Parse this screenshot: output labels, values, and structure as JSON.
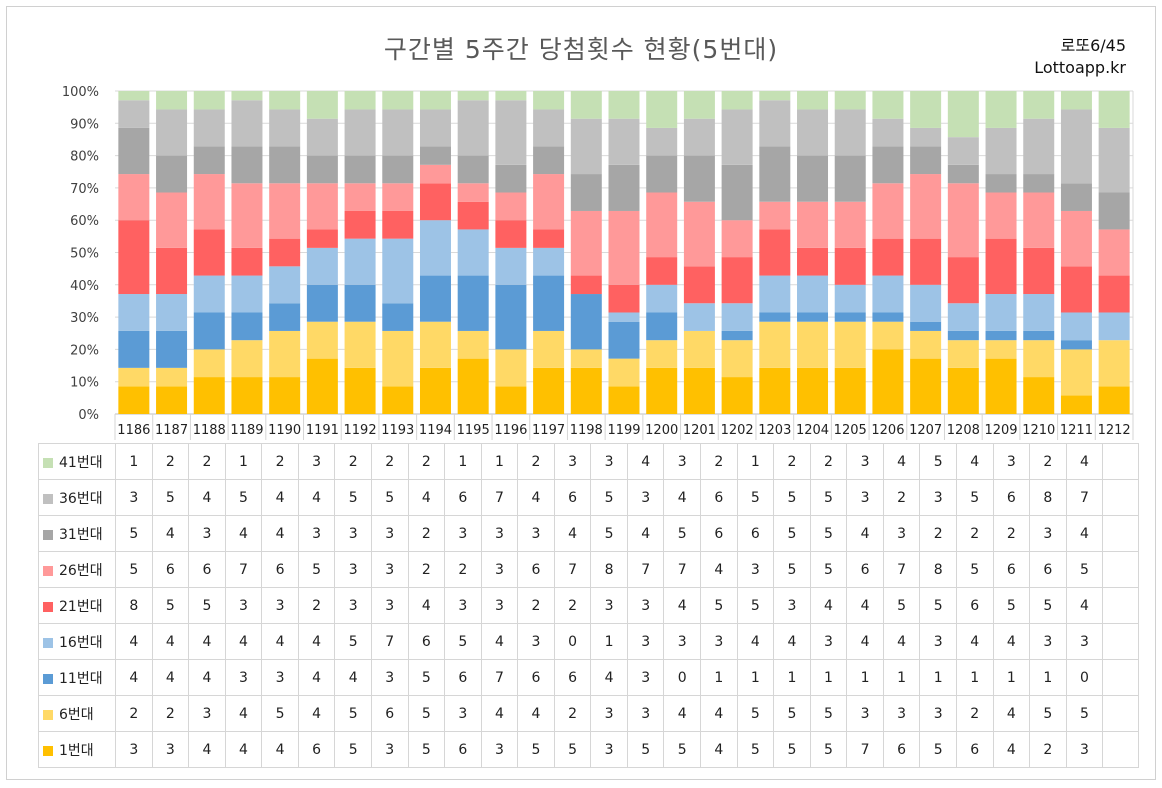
{
  "header": {
    "title": "구간별 5주간 당첨횟수 현황(5번대)",
    "brand_top": "로또6/45",
    "brand_bottom": "Lottoapp.kr"
  },
  "chart_data": {
    "type": "bar",
    "stacked": "percent",
    "title": "구간별 5주간 당첨횟수 현황(5번대)",
    "ylim": [
      0,
      100
    ],
    "y_ticks": [
      "0%",
      "10%",
      "20%",
      "30%",
      "40%",
      "50%",
      "60%",
      "70%",
      "80%",
      "90%",
      "100%"
    ],
    "grid": true,
    "categories": [
      "1186",
      "1187",
      "1188",
      "1189",
      "1190",
      "1191",
      "1192",
      "1193",
      "1194",
      "1195",
      "1196",
      "1197",
      "1198",
      "1199",
      "1200",
      "1201",
      "1202",
      "1203",
      "1204",
      "1205",
      "1206",
      "1207",
      "1208",
      "1209",
      "1210",
      "1211",
      "1212"
    ],
    "series": [
      {
        "name": "1번대",
        "color": "#ffc000",
        "values": [
          3,
          3,
          4,
          4,
          4,
          6,
          5,
          3,
          5,
          6,
          3,
          5,
          5,
          3,
          5,
          5,
          4,
          5,
          5,
          5,
          7,
          6,
          5,
          6,
          4,
          2,
          3
        ]
      },
      {
        "name": "6번대",
        "color": "#ffd966",
        "values": [
          2,
          2,
          3,
          4,
          5,
          4,
          5,
          6,
          5,
          3,
          4,
          4,
          2,
          3,
          3,
          4,
          4,
          5,
          5,
          5,
          3,
          3,
          3,
          2,
          4,
          5,
          5
        ]
      },
      {
        "name": "11번대",
        "color": "#5b9bd5",
        "values": [
          4,
          4,
          4,
          3,
          3,
          4,
          4,
          3,
          5,
          6,
          7,
          6,
          6,
          4,
          3,
          0,
          1,
          1,
          1,
          1,
          1,
          1,
          1,
          1,
          1,
          1,
          0
        ]
      },
      {
        "name": "16번대",
        "color": "#9dc3e6",
        "values": [
          4,
          4,
          4,
          4,
          4,
          4,
          5,
          7,
          6,
          5,
          4,
          3,
          0,
          1,
          3,
          3,
          3,
          4,
          4,
          3,
          4,
          4,
          3,
          4,
          4,
          3,
          3
        ]
      },
      {
        "name": "21번대",
        "color": "#ff6161",
        "values": [
          8,
          5,
          5,
          3,
          3,
          2,
          3,
          3,
          4,
          3,
          3,
          2,
          2,
          3,
          3,
          4,
          5,
          5,
          3,
          4,
          4,
          5,
          5,
          6,
          5,
          5,
          4
        ]
      },
      {
        "name": "26번대",
        "color": "#ff9999",
        "values": [
          5,
          6,
          6,
          7,
          6,
          5,
          3,
          3,
          2,
          2,
          3,
          6,
          7,
          8,
          7,
          7,
          4,
          3,
          5,
          5,
          6,
          7,
          8,
          5,
          6,
          6,
          5
        ]
      },
      {
        "name": "31번대",
        "color": "#a6a6a6",
        "values": [
          5,
          4,
          3,
          4,
          4,
          3,
          3,
          3,
          2,
          3,
          3,
          3,
          4,
          5,
          4,
          5,
          6,
          6,
          5,
          5,
          4,
          3,
          2,
          2,
          2,
          3,
          4
        ]
      },
      {
        "name": "36번대",
        "color": "#c0c0c0",
        "values": [
          3,
          5,
          4,
          5,
          4,
          4,
          5,
          5,
          4,
          6,
          7,
          4,
          6,
          5,
          3,
          4,
          6,
          5,
          5,
          5,
          3,
          2,
          3,
          5,
          6,
          8,
          7
        ]
      },
      {
        "name": "41번대",
        "color": "#c5e0b4",
        "values": [
          1,
          2,
          2,
          1,
          2,
          3,
          2,
          2,
          2,
          1,
          1,
          2,
          3,
          3,
          4,
          3,
          2,
          1,
          2,
          2,
          3,
          4,
          5,
          4,
          3,
          2,
          4
        ]
      }
    ]
  }
}
